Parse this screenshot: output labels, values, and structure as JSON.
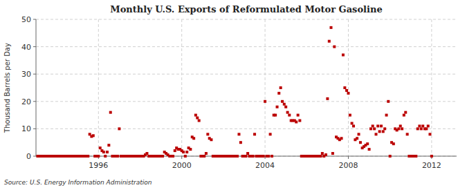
{
  "chart_data": {
    "type": "scatter",
    "title": "Monthly U.S. Exports of Reformulated Motor Gasoline",
    "y_label": "Thousand Barrels per Day",
    "annotations": [
      "Source: U.S. Energy Information Administration"
    ],
    "color": "#bb0000",
    "marker": "square",
    "grid": true,
    "xlim": [
      1993.0,
      2013.2
    ],
    "ylim": [
      0,
      50
    ],
    "xticks": [
      1996,
      2000,
      2004,
      2008,
      2012
    ],
    "yticks": [
      0,
      10,
      20,
      30,
      40,
      50
    ],
    "x": [
      1993.08,
      1993.17,
      1993.25,
      1993.33,
      1993.42,
      1993.5,
      1993.58,
      1993.67,
      1993.75,
      1993.83,
      1993.92,
      1994.0,
      1994.08,
      1994.17,
      1994.25,
      1994.33,
      1994.42,
      1994.5,
      1994.58,
      1994.67,
      1994.75,
      1994.83,
      1994.92,
      1995.0,
      1995.08,
      1995.17,
      1995.25,
      1995.33,
      1995.42,
      1995.5,
      1995.58,
      1995.67,
      1995.75,
      1995.83,
      1995.92,
      1996.0,
      1996.08,
      1996.17,
      1996.25,
      1996.33,
      1996.42,
      1996.5,
      1996.58,
      1996.67,
      1996.75,
      1996.83,
      1996.92,
      1997.0,
      1997.08,
      1997.17,
      1997.25,
      1997.33,
      1997.42,
      1997.5,
      1997.58,
      1997.67,
      1997.75,
      1997.83,
      1997.92,
      1998.0,
      1998.08,
      1998.17,
      1998.25,
      1998.33,
      1998.42,
      1998.5,
      1998.58,
      1998.67,
      1998.75,
      1998.83,
      1998.92,
      1999.0,
      1999.08,
      1999.17,
      1999.25,
      1999.33,
      1999.42,
      1999.5,
      1999.58,
      1999.67,
      1999.75,
      1999.83,
      1999.92,
      2000.0,
      2000.08,
      2000.17,
      2000.25,
      2000.33,
      2000.42,
      2000.5,
      2000.58,
      2000.67,
      2000.75,
      2000.83,
      2000.92,
      2001.0,
      2001.08,
      2001.17,
      2001.25,
      2001.33,
      2001.42,
      2001.5,
      2001.58,
      2001.67,
      2001.75,
      2001.83,
      2001.92,
      2002.0,
      2002.08,
      2002.17,
      2002.25,
      2002.33,
      2002.42,
      2002.5,
      2002.58,
      2002.67,
      2002.75,
      2002.83,
      2002.92,
      2003.0,
      2003.08,
      2003.17,
      2003.25,
      2003.33,
      2003.42,
      2003.5,
      2003.58,
      2003.67,
      2003.75,
      2003.83,
      2003.92,
      2004.0,
      2004.08,
      2004.17,
      2004.25,
      2004.33,
      2004.42,
      2004.5,
      2004.58,
      2004.67,
      2004.75,
      2004.83,
      2004.92,
      2005.0,
      2005.08,
      2005.17,
      2005.25,
      2005.33,
      2005.42,
      2005.5,
      2005.58,
      2005.67,
      2005.75,
      2005.83,
      2005.92,
      2006.0,
      2006.08,
      2006.17,
      2006.25,
      2006.33,
      2006.42,
      2006.5,
      2006.58,
      2006.67,
      2006.75,
      2006.83,
      2006.92,
      2007.0,
      2007.08,
      2007.17,
      2007.25,
      2007.33,
      2007.42,
      2007.5,
      2007.58,
      2007.67,
      2007.75,
      2007.83,
      2007.92,
      2008.0,
      2008.08,
      2008.17,
      2008.25,
      2008.33,
      2008.42,
      2008.5,
      2008.58,
      2008.67,
      2008.75,
      2008.83,
      2008.92,
      2009.0,
      2009.08,
      2009.17,
      2009.25,
      2009.33,
      2009.42,
      2009.5,
      2009.58,
      2009.67,
      2009.75,
      2009.83,
      2009.92,
      2010.0,
      2010.08,
      2010.17,
      2010.25,
      2010.33,
      2010.42,
      2010.5,
      2010.58,
      2010.67,
      2010.75,
      2010.83,
      2010.92,
      2011.0,
      2011.08,
      2011.17,
      2011.25,
      2011.33,
      2011.42,
      2011.5,
      2011.58,
      2011.67,
      2011.75,
      2011.83,
      2011.92,
      2012.0
    ],
    "values": [
      0,
      0,
      0,
      0,
      0,
      0,
      0,
      0,
      0,
      0,
      0,
      0,
      0,
      0,
      0,
      0,
      0,
      0,
      0,
      0,
      0,
      0,
      0,
      0,
      0,
      0,
      0,
      0,
      0,
      0,
      8.0,
      7.2,
      7.5,
      0,
      0,
      0,
      3.0,
      2.0,
      1.5,
      0,
      1.5,
      4.0,
      16.0,
      0,
      0,
      0,
      0,
      10.0,
      0,
      0,
      0,
      0,
      0,
      0,
      0,
      0,
      0,
      0,
      0,
      0,
      0,
      0,
      0.5,
      1.0,
      0,
      0,
      0,
      0,
      0,
      0,
      0,
      0,
      0,
      1.5,
      1.0,
      0.5,
      0,
      0,
      0,
      2.0,
      3.0,
      2.5,
      2.5,
      2.0,
      1.5,
      0,
      1.5,
      3.0,
      2.5,
      7.0,
      6.5,
      15.0,
      14.0,
      13.0,
      0,
      0,
      0,
      1.0,
      8.0,
      6.5,
      6.0,
      0,
      0,
      0,
      0,
      0,
      0,
      0,
      0,
      0,
      0,
      0,
      0,
      0,
      0,
      0,
      8.0,
      5.0,
      0,
      0,
      0,
      1.0,
      0,
      0,
      0,
      8.0,
      0,
      0,
      0,
      0,
      0,
      20.0,
      0,
      0,
      8.0,
      0,
      15.0,
      15.0,
      18.0,
      23.0,
      25.0,
      20.0,
      19.0,
      18.0,
      16.0,
      15.0,
      13.0,
      13.0,
      13.0,
      12.5,
      15.0,
      13.0,
      0,
      0,
      0,
      0,
      0,
      0,
      0,
      0,
      0,
      0,
      0,
      0,
      1.0,
      0,
      0.5,
      21.0,
      42.0,
      47.0,
      1.0,
      40.0,
      7.0,
      6.5,
      6.0,
      6.5,
      37.0,
      25.0,
      24.0,
      23.0,
      15.0,
      12.0,
      11.0,
      6.0,
      6.5,
      8.0,
      5.0,
      3.0,
      3.5,
      4.0,
      4.5,
      2.5,
      10.0,
      11.0,
      10.0,
      8.0,
      11.0,
      9.0,
      11.0,
      9.0,
      10.0,
      15.0,
      20.0,
      0,
      5.0,
      4.5,
      10.0,
      9.5,
      10.0,
      11.0,
      10.0,
      15.0,
      16.0,
      8.0,
      0,
      0,
      0,
      0,
      0,
      10.0,
      11.0,
      10.0,
      11.0,
      10.0,
      10.0,
      11.0,
      8.0,
      0
    ]
  }
}
